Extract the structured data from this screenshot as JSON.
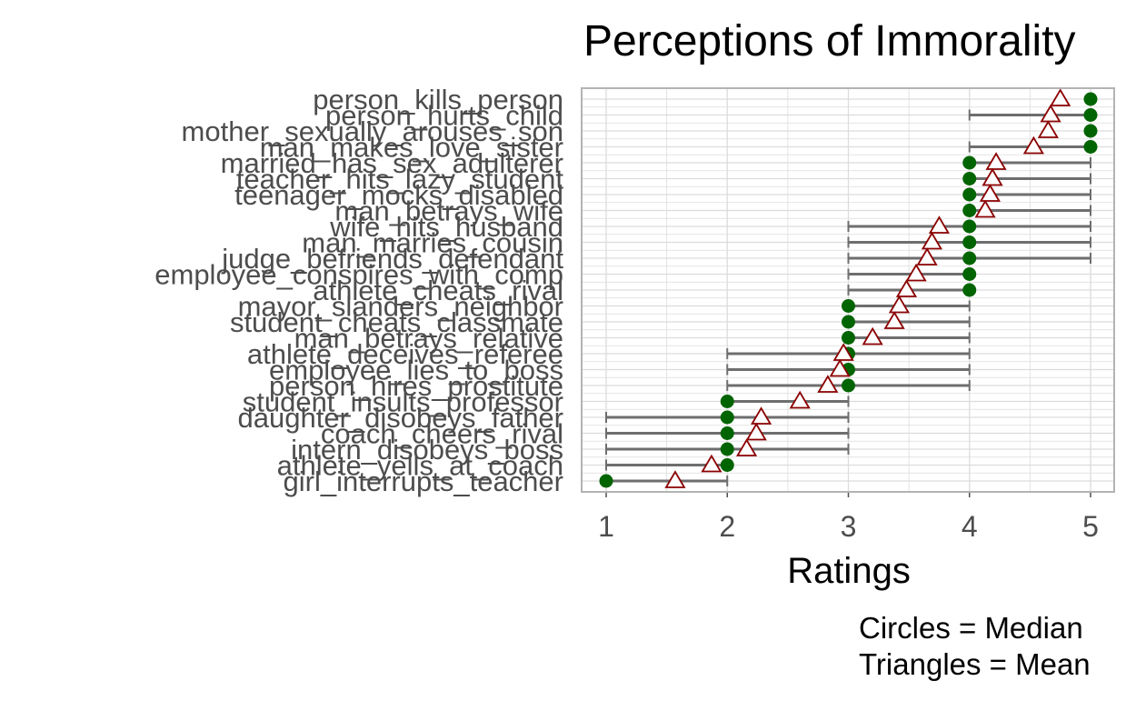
{
  "chart_data": {
    "type": "dot-range",
    "title": "Perceptions of Immorality",
    "xlabel": "Ratings",
    "ylabel": "",
    "xlim": [
      0.8,
      5.2
    ],
    "x_ticks": [
      1,
      2,
      3,
      4,
      5
    ],
    "grid": true,
    "caption": [
      "Circles = Median",
      "Triangles = Mean"
    ],
    "colors": {
      "median": "#006400",
      "mean": "#8b0000",
      "range": "#6e6e6e",
      "grid": "#dcdcdc",
      "border": "#b3b3b3"
    },
    "items": [
      {
        "label": "person_kills_person",
        "median": 5,
        "mean": 4.75,
        "low": 5,
        "high": 5
      },
      {
        "label": "person_hurts_child",
        "median": 5,
        "mean": 4.67,
        "low": 4,
        "high": 5
      },
      {
        "label": "mother_sexually_arouses_son",
        "median": 5,
        "mean": 4.65,
        "low": 5,
        "high": 5
      },
      {
        "label": "man_makes_love_sister",
        "median": 5,
        "mean": 4.53,
        "low": 4,
        "high": 5
      },
      {
        "label": "married_has_sex_adulterer",
        "median": 4,
        "mean": 4.22,
        "low": 4,
        "high": 5
      },
      {
        "label": "teacher_hits_lazy_student",
        "median": 4,
        "mean": 4.19,
        "low": 4,
        "high": 5
      },
      {
        "label": "teenager_mocks_disabled",
        "median": 4,
        "mean": 4.17,
        "low": 4,
        "high": 5
      },
      {
        "label": "man_betrays_wife",
        "median": 4,
        "mean": 4.13,
        "low": 4,
        "high": 5
      },
      {
        "label": "wife_hits_husband",
        "median": 4,
        "mean": 3.75,
        "low": 3,
        "high": 5
      },
      {
        "label": "man_marries_cousin",
        "median": 4,
        "mean": 3.69,
        "low": 3,
        "high": 5
      },
      {
        "label": "judge_befriends_defendant",
        "median": 4,
        "mean": 3.65,
        "low": 3,
        "high": 5
      },
      {
        "label": "employee_conspires_with_comp",
        "median": 4,
        "mean": 3.56,
        "low": 3,
        "high": 4
      },
      {
        "label": "athlete_cheats_rival",
        "median": 4,
        "mean": 3.48,
        "low": 3,
        "high": 4
      },
      {
        "label": "mayor_slanders_neighbor",
        "median": 3,
        "mean": 3.42,
        "low": 3,
        "high": 4
      },
      {
        "label": "student_cheats_classmate",
        "median": 3,
        "mean": 3.38,
        "low": 3,
        "high": 4
      },
      {
        "label": "man_betrays_relative",
        "median": 3,
        "mean": 3.2,
        "low": 3,
        "high": 4
      },
      {
        "label": "athlete_deceives_referee",
        "median": 3,
        "mean": 2.96,
        "low": 2,
        "high": 4
      },
      {
        "label": "employee_lies_to_boss",
        "median": 3,
        "mean": 2.93,
        "low": 2,
        "high": 4
      },
      {
        "label": "person_hires_prostitute",
        "median": 3,
        "mean": 2.83,
        "low": 2,
        "high": 4
      },
      {
        "label": "student_insults_professor",
        "median": 2,
        "mean": 2.6,
        "low": 2,
        "high": 3
      },
      {
        "label": "daughter_disobeys_father",
        "median": 2,
        "mean": 2.28,
        "low": 1,
        "high": 3
      },
      {
        "label": "coach_cheers_rival",
        "median": 2,
        "mean": 2.24,
        "low": 1,
        "high": 3
      },
      {
        "label": "intern_disobeys_boss",
        "median": 2,
        "mean": 2.16,
        "low": 1,
        "high": 3
      },
      {
        "label": "athlete_yells_at_coach",
        "median": 2,
        "mean": 1.87,
        "low": 1,
        "high": 2
      },
      {
        "label": "girl_interrupts_teacher",
        "median": 1,
        "mean": 1.57,
        "low": 1,
        "high": 2
      }
    ]
  }
}
